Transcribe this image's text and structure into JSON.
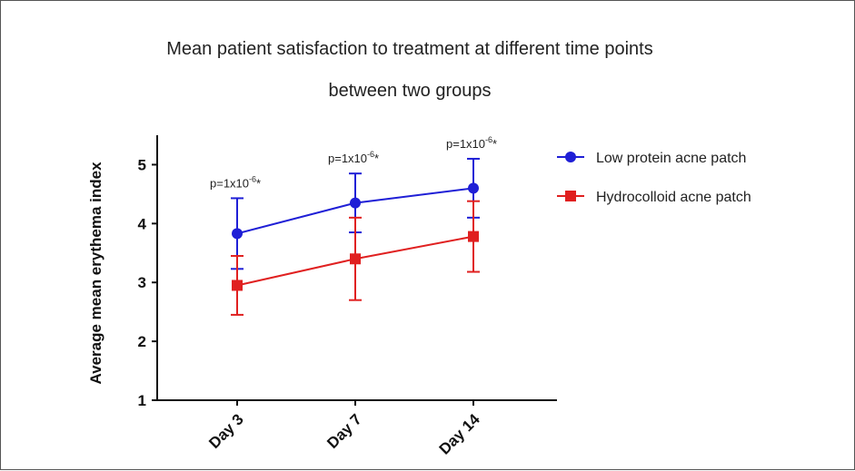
{
  "chart_data": {
    "type": "line",
    "title_line1": "Mean patient satisfaction to treatment at different time points",
    "title_line2": "between two groups",
    "xlabel": "",
    "ylabel": "Average mean erythema index",
    "categories": [
      "Day 3",
      "Day 7",
      "Day 14"
    ],
    "ylim": [
      1,
      5.5
    ],
    "yticks": [
      "1",
      "2",
      "3",
      "4",
      "5"
    ],
    "legend_position": "right",
    "series": [
      {
        "name": "Low protein acne patch",
        "color": "#1f1fd6",
        "marker": "circle",
        "values": [
          3.83,
          4.35,
          4.6
        ],
        "err_low": [
          0.6,
          0.5,
          0.5
        ],
        "err_high": [
          0.6,
          0.5,
          0.5
        ]
      },
      {
        "name": "Hydrocolloid acne patch",
        "color": "#e02020",
        "marker": "square",
        "values": [
          2.95,
          3.4,
          3.78
        ],
        "err_low": [
          0.5,
          0.7,
          0.6
        ],
        "err_high": [
          0.5,
          0.7,
          0.6
        ]
      }
    ],
    "annotations": [
      {
        "category_index": 0,
        "base": "p=1x10",
        "exp": "-6",
        "suffix": "*"
      },
      {
        "category_index": 1,
        "base": "p=1x10",
        "exp": "-6",
        "suffix": "*"
      },
      {
        "category_index": 2,
        "base": "p=1x10",
        "exp": "-6",
        "suffix": "*"
      }
    ]
  }
}
